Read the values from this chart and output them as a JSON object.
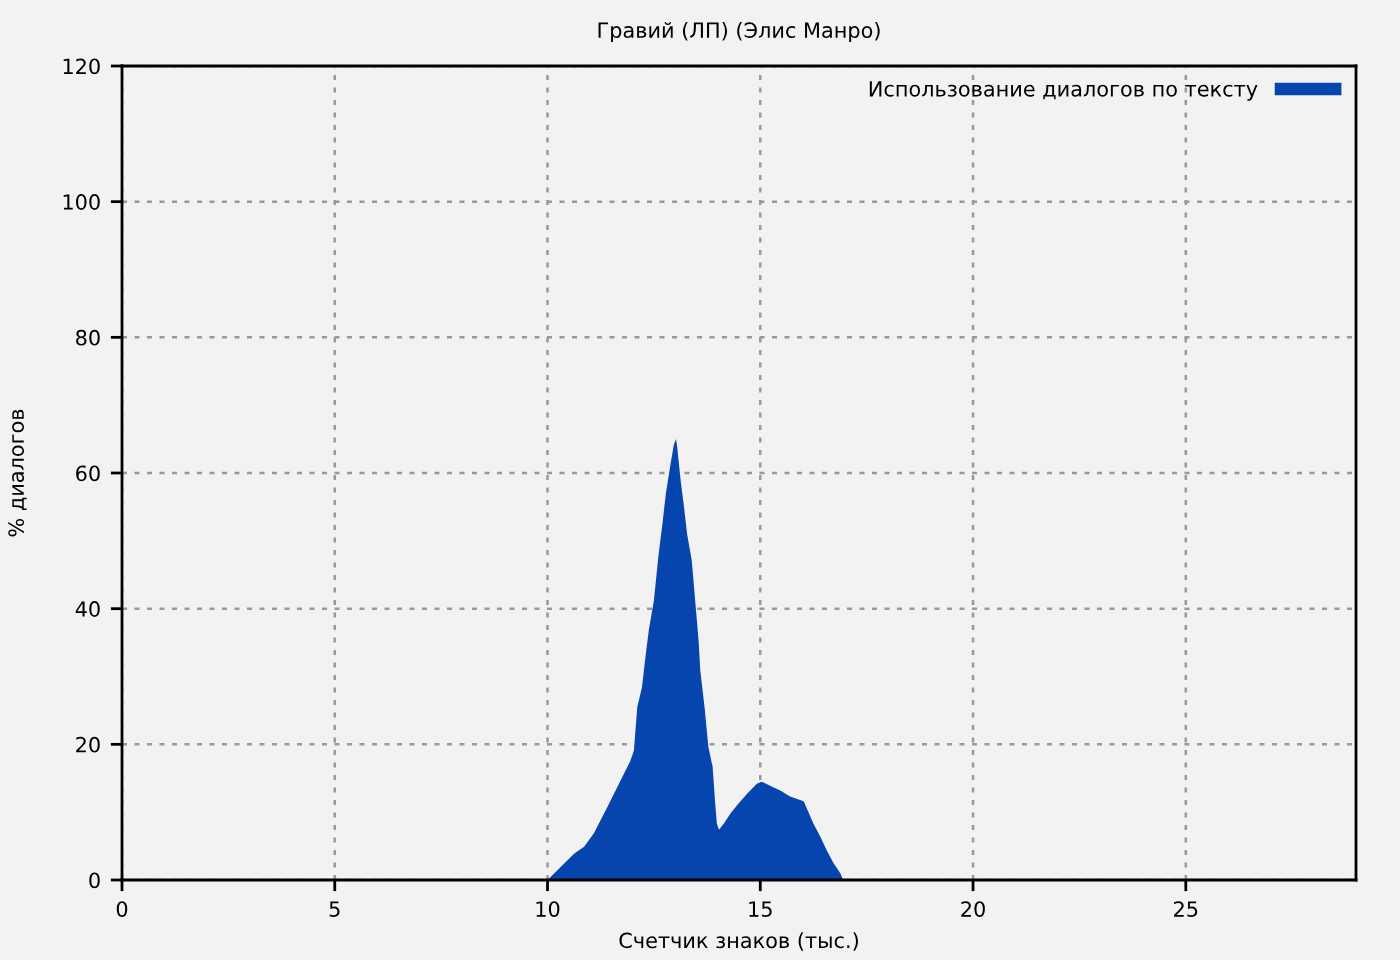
{
  "chart_data": {
    "type": "area",
    "title": "Гравий (ЛП) (Элис Манро)",
    "xlabel": "Счетчик знаков (тыс.)",
    "ylabel": "% диалогов",
    "xlim": [
      0,
      29
    ],
    "ylim": [
      0,
      120
    ],
    "xticks": [
      0,
      5,
      10,
      15,
      20,
      25
    ],
    "yticks": [
      0,
      20,
      40,
      60,
      80,
      100,
      120
    ],
    "grid": true,
    "legend": "top right",
    "series": [
      {
        "name": "Использование диалогов по тексту",
        "color": "#0645ad",
        "x": [
          10,
          10.16,
          10.63,
          10.86,
          11.09,
          11.41,
          11.72,
          11.95,
          12.03,
          12.11,
          12.22,
          12.3,
          12.38,
          12.5,
          12.61,
          12.7,
          12.78,
          12.89,
          12.97,
          13.02,
          13.05,
          13.13,
          13.2,
          13.28,
          13.39,
          13.47,
          13.55,
          13.59,
          13.69,
          13.78,
          13.88,
          13.94,
          13.98,
          14.03,
          14.14,
          14.3,
          14.45,
          14.69,
          14.92,
          15.03,
          15.23,
          15.47,
          15.7,
          16.02,
          16.09,
          16.25,
          16.41,
          16.56,
          16.72,
          16.88,
          16.95
        ],
        "values": [
          0,
          1.0,
          3.9,
          4.9,
          6.9,
          10.8,
          14.7,
          17.6,
          19.1,
          25.5,
          28.4,
          32.8,
          36.8,
          41.2,
          48.0,
          52.5,
          56.9,
          61.3,
          64.2,
          65.0,
          63.7,
          58.8,
          55.4,
          51.0,
          47.1,
          41.2,
          35.3,
          30.9,
          25.5,
          19.6,
          16.7,
          11.3,
          8.3,
          7.4,
          8.3,
          9.8,
          11.0,
          12.7,
          14.2,
          14.5,
          13.9,
          13.2,
          12.3,
          11.6,
          10.6,
          8.3,
          6.4,
          4.4,
          2.5,
          1.0,
          0
        ]
      }
    ]
  }
}
